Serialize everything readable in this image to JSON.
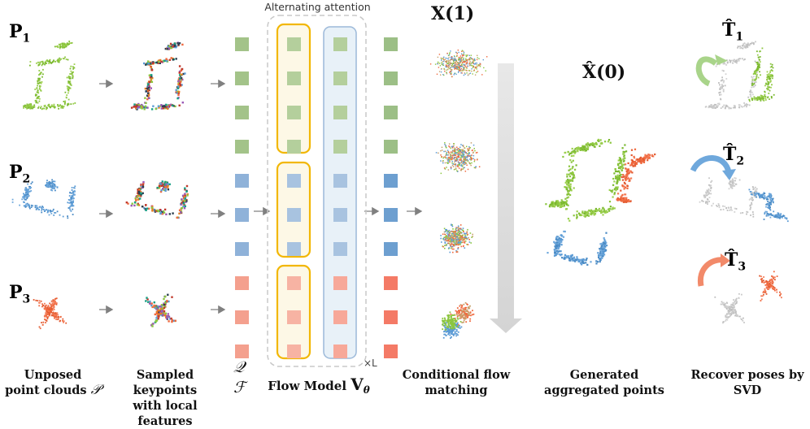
{
  "point_labels": {
    "p1": "P",
    "p1_sub": "1",
    "p2": "P",
    "p2_sub": "2",
    "p3": "P",
    "p3_sub": "3"
  },
  "attention_title": "Alternating attention",
  "times_l": "×L",
  "x1_label": "X(1)",
  "x0_label": "X̂(0)",
  "t1_label": "T̂",
  "t1_sub": "1",
  "t2_label": "T̂",
  "t2_sub": "2",
  "t3_label": "T̂",
  "t3_sub": "3",
  "q_symbol": "𝒬",
  "f_symbol": "ℱ",
  "captions": {
    "c1_line1": "Unposed",
    "c1_line2": "point clouds",
    "c1_sym": "𝒫",
    "c2_line1": "Sampled keypoints",
    "c2_line2": "with local features",
    "c3_text": "Flow Model",
    "c3_sym": "V",
    "c3_sub": "θ",
    "c4_line1": "Conditional flow",
    "c4_line2": "matching",
    "c5_line1": "Generated",
    "c5_line2": "aggregated points",
    "c6_line1": "Recover poses by",
    "c6_line2": "SVD"
  },
  "colors": {
    "green": "#8cc63f",
    "blue": "#5b9bd5",
    "orange": "#f0693e",
    "gray": "#bdbdbd",
    "attention_yellow": "#f2b705",
    "attention_blue_bg": "#e8f1f8",
    "attention_blue_border": "#9cb9d9"
  }
}
